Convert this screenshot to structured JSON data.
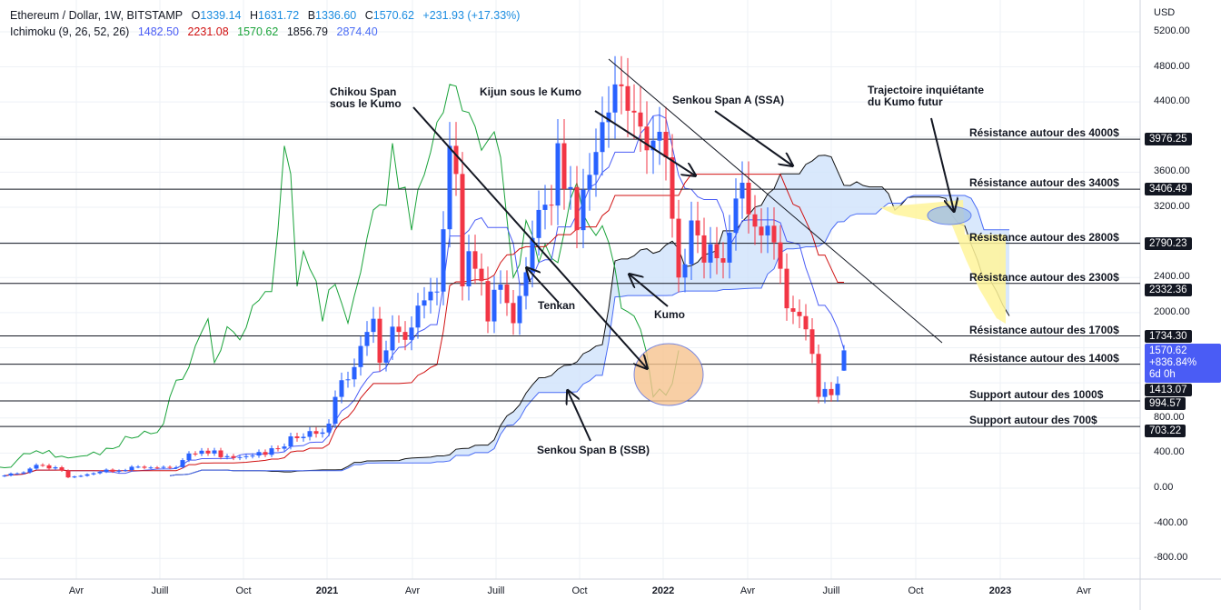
{
  "header": {
    "symbol": "Ethereum / Dollar, 1W, BITSTAMP",
    "o_label": "O",
    "o": "1339.14",
    "h_label": "H",
    "h": "1631.72",
    "l_label": "B",
    "l": "1336.60",
    "c_label": "C",
    "c": "1570.62",
    "change": "+231.93 (+17.33%)",
    "ichimoku_label": "Ichimoku (9, 26, 52, 26)",
    "ich_tenkan": "1482.50",
    "ich_kijun": "2231.08",
    "ich_chikou": "1570.62",
    "ich_ssa": "1856.79",
    "ich_ssb": "2874.40"
  },
  "colors": {
    "up": "#2962ff",
    "down": "#f23645",
    "tenkan": "#4a5cf5",
    "kijun": "#d01010",
    "chikou": "#1aa33a",
    "ssa": "#111111",
    "ssb": "#4a6cf5",
    "kumo": "#cfe2fb",
    "highlight": "#fff59a",
    "orange": "#f7c48f"
  },
  "chart_data": {
    "type": "candlestick",
    "title": "Ethereum / Dollar, 1W, BITSTAMP",
    "ylabel": "USD",
    "ylim": [
      -900,
      5300
    ],
    "interval": "1W",
    "start": "2020-01",
    "closes": [
      144,
      167,
      168,
      180,
      223,
      265,
      260,
      225,
      238,
      200,
      123,
      133,
      141,
      158,
      170,
      187,
      211,
      188,
      200,
      206,
      244,
      245,
      232,
      236,
      232,
      242,
      233,
      239,
      320,
      395,
      392,
      427,
      395,
      430,
      353,
      365,
      344,
      354,
      365,
      372,
      412,
      380,
      455,
      450,
      475,
      590,
      570,
      585,
      650,
      620,
      635,
      735,
      1040,
      1230,
      1240,
      1380,
      1620,
      1780,
      1930,
      1430,
      1570,
      1840,
      1780,
      1690,
      1830,
      2080,
      2140,
      2240,
      2240,
      2950,
      3900,
      3580,
      2300,
      2700,
      2500,
      2360,
      1900,
      2260,
      2320,
      2110,
      1880,
      2190,
      2460,
      2850,
      3170,
      3230,
      3220,
      3930,
      3410,
      3430,
      2940,
      3400,
      3570,
      3830,
      4170,
      4280,
      4600,
      4580,
      4300,
      4280,
      4120,
      3850,
      3960,
      4060,
      3770,
      3070,
      2400,
      2550,
      3050,
      2880,
      2570,
      2780,
      2620,
      2570,
      2910,
      3300,
      3480,
      3120,
      2980,
      2880,
      2990,
      2800,
      2500,
      2050,
      2010,
      1960,
      1810,
      1530,
      1040,
      1130,
      1060,
      1190,
      1570
    ],
    "last_candle": {
      "open": 1339.14,
      "high": 1631.72,
      "low": 1336.6,
      "close": 1570.62
    },
    "ichimoku": {
      "tenkan": 9,
      "kijun": 26,
      "senkou_b": 52,
      "displacement": 26
    },
    "y_ticks": [
      "5200.00",
      "4800.00",
      "4400.00",
      "3600.00",
      "3200.00",
      "2400.00",
      "2000.00",
      "800.00",
      "400.00",
      "0.00",
      "-400.00",
      "-800.00"
    ],
    "x_ticks": [
      "Avr",
      "Juill",
      "Oct",
      "2021",
      "Avr",
      "Juill",
      "Oct",
      "2022",
      "Avr",
      "Juill",
      "Oct",
      "2023",
      "Avr"
    ],
    "levels": [
      {
        "price": "3976.25",
        "label": "Résistance autour des 4000$"
      },
      {
        "price": "3406.49",
        "label": "Résistance autour des 3400$"
      },
      {
        "price": "2790.23",
        "label": "Résistance autour des 2800$"
      },
      {
        "price": "2332.36",
        "label": "Résistance autour des 2300$"
      },
      {
        "price": "1734.30",
        "label": "Résistance autour des 1700$"
      },
      {
        "price": "1413.07",
        "label": "Résistance autour des 1400$"
      },
      {
        "price": "994.57",
        "label": "Support autour des 1000$"
      },
      {
        "price": "703.22",
        "label": "Support autour des 700$"
      }
    ],
    "annotations": {
      "chikou": "Chikou Span\nsous le Kumo",
      "kijun": "Kijun sous le Kumo",
      "ssa": "Senkou Span A (SSA)",
      "traj": "Trajectoire inquiétante\ndu Kumo futur",
      "tenkan": "Tenkan",
      "kumo": "Kumo",
      "ssb": "Senkou Span B (SSB)"
    }
  },
  "price_axis": {
    "currency": "USD",
    "current_price": "1570.62",
    "current_change": "+836.84%",
    "countdown": "6d 0h"
  }
}
